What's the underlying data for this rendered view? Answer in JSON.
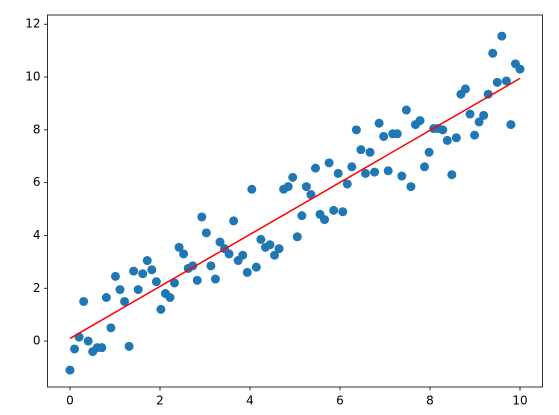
{
  "chart_data": {
    "type": "scatter",
    "series": [
      {
        "type": "scatter",
        "color": "#1f77b4",
        "x": [
          0,
          0.101,
          0.202,
          0.303,
          0.404,
          0.505,
          0.606,
          0.707,
          0.808,
          0.909,
          1.01,
          1.111,
          1.212,
          1.313,
          1.414,
          1.515,
          1.616,
          1.717,
          1.818,
          1.919,
          2.02,
          2.121,
          2.222,
          2.323,
          2.424,
          2.525,
          2.626,
          2.727,
          2.828,
          2.929,
          3.03,
          3.131,
          3.232,
          3.333,
          3.434,
          3.535,
          3.636,
          3.737,
          3.838,
          3.939,
          4.04,
          4.141,
          4.242,
          4.343,
          4.444,
          4.545,
          4.646,
          4.747,
          4.848,
          4.949,
          5.051,
          5.152,
          5.253,
          5.354,
          5.455,
          5.556,
          5.657,
          5.758,
          5.859,
          5.96,
          6.061,
          6.162,
          6.263,
          6.364,
          6.465,
          6.566,
          6.667,
          6.768,
          6.869,
          6.97,
          7.071,
          7.172,
          7.273,
          7.374,
          7.475,
          7.576,
          7.677,
          7.778,
          7.879,
          7.98,
          8.081,
          8.182,
          8.283,
          8.384,
          8.485,
          8.586,
          8.687,
          8.788,
          8.889,
          8.99,
          9.091,
          9.192,
          9.293,
          9.394,
          9.495,
          9.596,
          9.697,
          9.798,
          9.899,
          10
        ],
        "values": [
          -1.1,
          -0.3,
          0.15,
          1.5,
          0.0,
          -0.4,
          -0.25,
          -0.25,
          1.65,
          0.5,
          2.45,
          1.95,
          1.5,
          -0.2,
          2.65,
          1.95,
          2.55,
          3.05,
          2.7,
          2.25,
          1.2,
          1.8,
          1.65,
          2.2,
          3.55,
          3.3,
          2.75,
          2.85,
          2.3,
          4.7,
          4.1,
          2.85,
          2.35,
          3.75,
          3.5,
          3.3,
          4.55,
          3.05,
          3.25,
          2.6,
          5.75,
          2.8,
          3.85,
          3.55,
          3.65,
          3.25,
          3.5,
          5.75,
          5.85,
          6.2,
          3.95,
          4.75,
          5.85,
          5.55,
          6.55,
          4.8,
          4.6,
          6.75,
          4.95,
          6.35,
          4.9,
          5.95,
          6.6,
          8.0,
          7.25,
          6.35,
          7.15,
          6.4,
          8.25,
          7.75,
          6.45,
          7.85,
          7.85,
          6.25,
          8.75,
          5.85,
          8.2,
          8.35,
          6.6,
          7.15,
          8.05,
          8.05,
          8.0,
          7.6,
          6.3,
          7.7,
          9.35,
          9.55,
          8.6,
          7.8,
          8.3,
          8.55,
          9.35,
          10.9,
          9.8,
          11.55,
          9.85,
          8.2,
          10.5,
          10.3
        ]
      },
      {
        "type": "line",
        "color": "#ff0000",
        "x": [
          0,
          10
        ],
        "values": [
          0.1,
          9.95
        ]
      }
    ],
    "xlim": [
      -0.5,
      10.5
    ],
    "ylim": [
      -1.74,
      12.35
    ],
    "xticks": [
      0,
      2,
      4,
      6,
      8,
      10
    ],
    "yticks": [
      0,
      2,
      4,
      6,
      8,
      10,
      12
    ]
  }
}
